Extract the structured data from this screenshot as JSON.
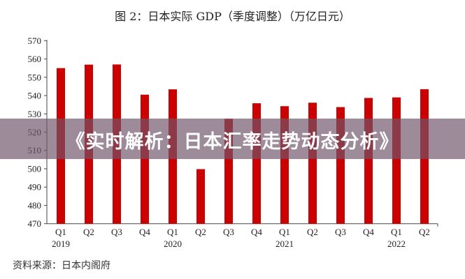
{
  "chart_data": {
    "type": "bar",
    "title": "图 2：日本实际 GDP（季度调整）（万亿日元）",
    "categories": [
      "Q1",
      "Q2",
      "Q3",
      "Q4",
      "Q1",
      "Q2",
      "Q3",
      "Q4",
      "Q1",
      "Q2",
      "Q3",
      "Q4",
      "Q1",
      "Q2"
    ],
    "year_labels": [
      {
        "index": 0,
        "label": "2019"
      },
      {
        "index": 4,
        "label": "2020"
      },
      {
        "index": 8,
        "label": "2021"
      },
      {
        "index": 12,
        "label": "2022"
      }
    ],
    "values": [
      555.0,
      556.9,
      557.0,
      540.5,
      543.4,
      499.8,
      527.3,
      535.8,
      534.2,
      536.1,
      533.7,
      538.7,
      539.0,
      543.5
    ],
    "ylim": [
      470,
      570
    ],
    "yticks": [
      470,
      480,
      490,
      500,
      510,
      520,
      530,
      540,
      550,
      560,
      570
    ],
    "xlabel": "",
    "ylabel": "",
    "grid": false,
    "bar_color": "#cc0000"
  },
  "source": "资料来源：日本内阁府",
  "banner": {
    "text": "《实时解析：日本汇率走势动态分析》"
  }
}
